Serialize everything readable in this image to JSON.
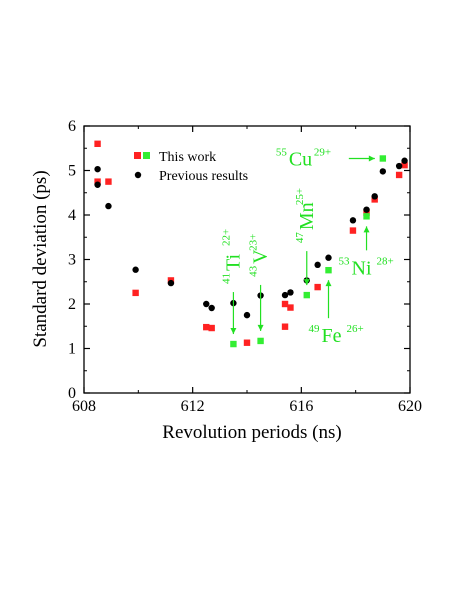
{
  "chart_data": {
    "type": "scatter",
    "title": "",
    "xlabel": "Revolution periods (ns)",
    "ylabel": "Standard deviation (ps)",
    "xlim": [
      608,
      620
    ],
    "ylim": [
      0,
      6
    ],
    "xticks": [
      608,
      612,
      616,
      620
    ],
    "yticks": [
      0,
      1,
      2,
      3,
      4,
      5,
      6
    ],
    "xtick_labels": [
      "608",
      "612",
      "616",
      "620"
    ],
    "ytick_labels": [
      "0",
      "1",
      "2",
      "3",
      "4",
      "5",
      "6"
    ],
    "grid": false,
    "legend": {
      "position": "top-left",
      "entries": [
        {
          "label": "This work",
          "marker": "square",
          "colors": [
            "#ff2222",
            "#33ee33"
          ]
        },
        {
          "label": "Previous results",
          "marker": "circle",
          "colors": [
            "#000000"
          ]
        }
      ]
    },
    "series": [
      {
        "name": "This work",
        "marker": "square",
        "color": "#ff2222",
        "points": [
          [
            608.5,
            5.6
          ],
          [
            608.5,
            4.75
          ],
          [
            608.9,
            4.75
          ],
          [
            609.9,
            2.25
          ],
          [
            611.2,
            2.53
          ],
          [
            612.5,
            1.48
          ],
          [
            612.7,
            1.46
          ],
          [
            614.0,
            1.13
          ],
          [
            615.4,
            2.0
          ],
          [
            615.4,
            1.49
          ],
          [
            615.6,
            1.92
          ],
          [
            616.6,
            2.38
          ],
          [
            617.9,
            3.65
          ],
          [
            618.4,
            4.05
          ],
          [
            618.7,
            4.35
          ],
          [
            619.6,
            4.9
          ],
          [
            619.8,
            5.12
          ]
        ]
      },
      {
        "name": "This work",
        "marker": "square",
        "color": "#33ee33",
        "points": [
          [
            613.5,
            1.1
          ],
          [
            614.5,
            1.17
          ],
          [
            616.2,
            2.2
          ],
          [
            617.0,
            2.76
          ],
          [
            618.4,
            3.97
          ],
          [
            619.0,
            5.27
          ]
        ]
      },
      {
        "name": "Previous results",
        "marker": "circle",
        "color": "#000000",
        "points": [
          [
            608.5,
            5.03
          ],
          [
            608.5,
            4.68
          ],
          [
            608.9,
            4.2
          ],
          [
            609.9,
            2.77
          ],
          [
            611.2,
            2.47
          ],
          [
            612.5,
            2.0
          ],
          [
            612.7,
            1.91
          ],
          [
            613.5,
            2.02
          ],
          [
            614.0,
            1.75
          ],
          [
            614.5,
            2.19
          ],
          [
            615.4,
            2.2
          ],
          [
            615.6,
            2.26
          ],
          [
            616.2,
            2.53
          ],
          [
            616.6,
            2.88
          ],
          [
            617.0,
            3.04
          ],
          [
            617.9,
            3.88
          ],
          [
            618.4,
            4.12
          ],
          [
            618.7,
            4.42
          ],
          [
            619.0,
            4.98
          ],
          [
            619.6,
            5.1
          ],
          [
            619.8,
            5.22
          ]
        ]
      }
    ],
    "annotations": [
      {
        "mass": "41",
        "element": "Ti",
        "charge": "22+",
        "x": 613.5,
        "y": 1.1
      },
      {
        "mass": "43",
        "element": "V",
        "charge": "23+",
        "x": 614.5,
        "y": 1.17
      },
      {
        "mass": "47",
        "element": "Mn",
        "charge": "25+",
        "x": 616.2,
        "y": 2.2
      },
      {
        "mass": "49",
        "element": "Fe",
        "charge": "26+",
        "x": 617.0,
        "y": 2.76
      },
      {
        "mass": "53",
        "element": "Ni",
        "charge": "28+",
        "x": 618.4,
        "y": 3.97
      },
      {
        "mass": "55",
        "element": "Cu",
        "charge": "29+",
        "x": 619.0,
        "y": 5.27
      }
    ],
    "annotation_color": "#22e022"
  }
}
